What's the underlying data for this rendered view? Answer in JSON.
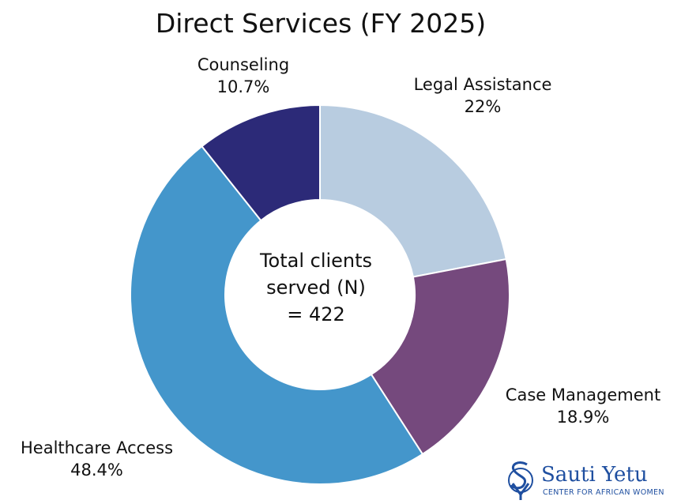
{
  "chart_data": {
    "type": "pie",
    "title": "Direct Services (FY 2025)",
    "donut": true,
    "categories": [
      "Legal Assistance",
      "Case Management",
      "Healthcare Access",
      "Counseling"
    ],
    "values": [
      22,
      18.9,
      48.4,
      10.7
    ],
    "value_labels": [
      "22%",
      "18.9%",
      "48.4%",
      "10.7%"
    ],
    "colors": [
      "#b8cce0",
      "#75497d",
      "#4496cb",
      "#2c2a78"
    ],
    "center_text": [
      "Total clients",
      "served (N)",
      "= 422"
    ]
  },
  "logo": {
    "name": "Sauti Yetu",
    "tagline": "CENTER FOR AFRICAN WOMEN",
    "color": "#1f4fa0"
  }
}
